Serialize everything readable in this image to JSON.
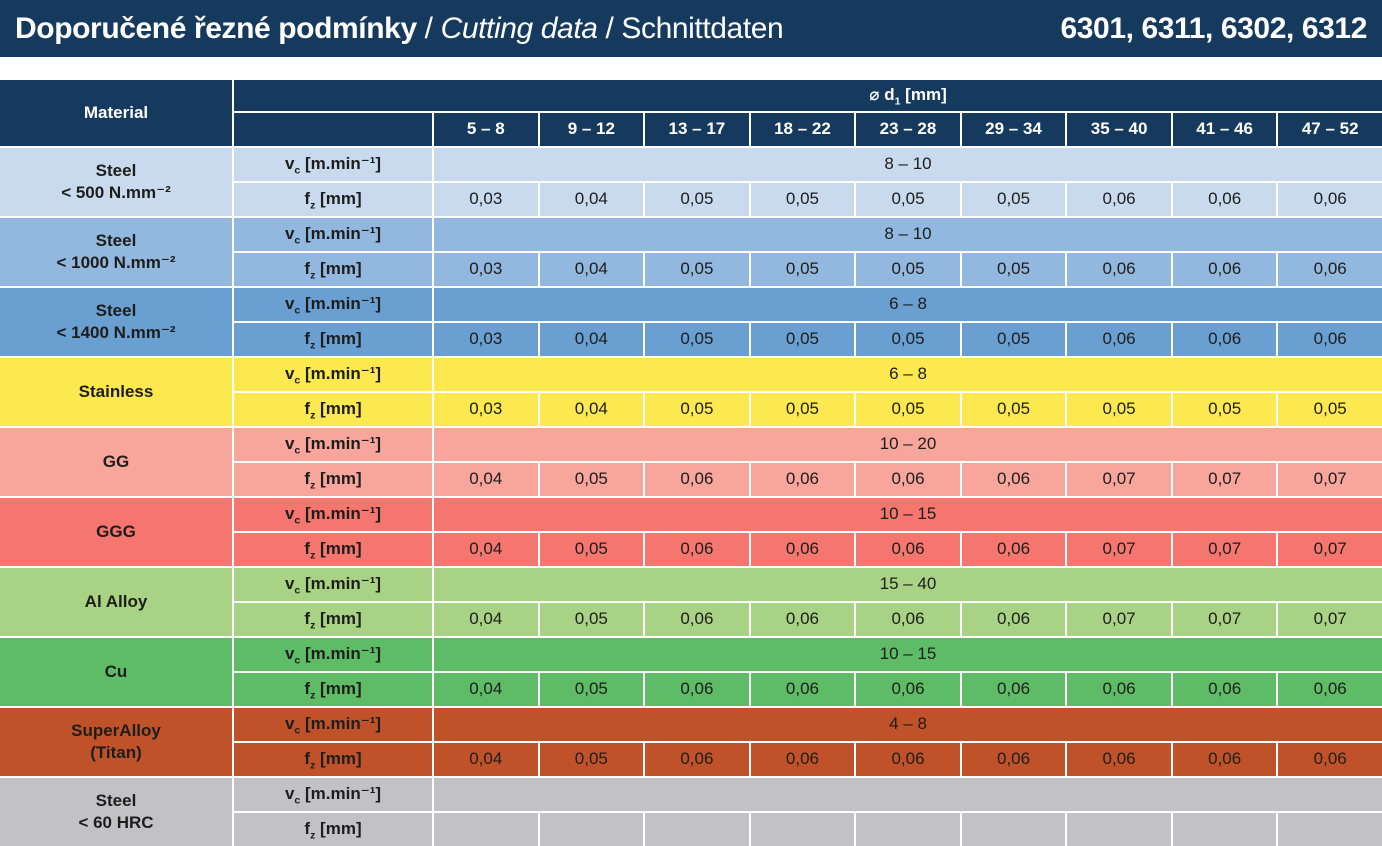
{
  "title": {
    "czech": "Doporučené řezné podmínky",
    "sep1": " / ",
    "english": "Cutting data",
    "sep2": " / ",
    "german": "Schnittdaten",
    "codes": "6301, 6311, 6302, 6312"
  },
  "colors": {
    "navy": "#163a5e",
    "grid_line": "#ffffff",
    "page_background": "#ffffff",
    "header_text": "#ffffff",
    "data_text": "#1d1d1b"
  },
  "table": {
    "material_header": "Material",
    "d1_header": {
      "pre": "⌀ d",
      "sub": "1",
      "post": " [mm]"
    },
    "diameter_ranges": [
      "5 – 8",
      "9 – 12",
      "13 – 17",
      "18 – 22",
      "23 – 28",
      "29 – 34",
      "35 – 40",
      "41 – 46",
      "47 – 52"
    ],
    "row_labels": {
      "vc": {
        "pre": "v",
        "sub": "c",
        "post": " [m.min⁻¹]"
      },
      "fz": {
        "pre": "f",
        "sub": "z",
        "post": " [mm]"
      }
    },
    "groups": [
      {
        "material_lines": [
          "Steel",
          "< 500 N.mm⁻²"
        ],
        "color": "#c9daee",
        "vc": "8 – 10",
        "fz": [
          "0,03",
          "0,04",
          "0,05",
          "0,05",
          "0,05",
          "0,05",
          "0,06",
          "0,06",
          "0,06"
        ]
      },
      {
        "material_lines": [
          "Steel",
          "< 1000 N.mm⁻²"
        ],
        "color": "#92b8df",
        "vc": "8 – 10",
        "fz": [
          "0,03",
          "0,04",
          "0,05",
          "0,05",
          "0,05",
          "0,05",
          "0,06",
          "0,06",
          "0,06"
        ]
      },
      {
        "material_lines": [
          "Steel",
          "< 1400 N.mm⁻²"
        ],
        "color": "#699fd1",
        "vc": "6 – 8",
        "fz": [
          "0,03",
          "0,04",
          "0,05",
          "0,05",
          "0,05",
          "0,05",
          "0,06",
          "0,06",
          "0,06"
        ]
      },
      {
        "material_lines": [
          "Stainless"
        ],
        "color": "#fbe94f",
        "vc": "6 – 8",
        "fz": [
          "0,03",
          "0,04",
          "0,05",
          "0,05",
          "0,05",
          "0,05",
          "0,05",
          "0,05",
          "0,05"
        ]
      },
      {
        "material_lines": [
          "GG"
        ],
        "color": "#f8a59c",
        "vc": "10 – 20",
        "fz": [
          "0,04",
          "0,05",
          "0,06",
          "0,06",
          "0,06",
          "0,06",
          "0,07",
          "0,07",
          "0,07"
        ]
      },
      {
        "material_lines": [
          "GGG"
        ],
        "color": "#f4766e",
        "vc": "10 – 15",
        "fz": [
          "0,04",
          "0,05",
          "0,06",
          "0,06",
          "0,06",
          "0,06",
          "0,07",
          "0,07",
          "0,07"
        ]
      },
      {
        "material_lines": [
          "Al Alloy"
        ],
        "color": "#a8d284",
        "vc": "15 – 40",
        "fz": [
          "0,04",
          "0,05",
          "0,06",
          "0,06",
          "0,06",
          "0,06",
          "0,07",
          "0,07",
          "0,07"
        ]
      },
      {
        "material_lines": [
          "Cu"
        ],
        "color": "#5fbc66",
        "vc": "10 – 15",
        "fz": [
          "0,04",
          "0,05",
          "0,06",
          "0,06",
          "0,06",
          "0,06",
          "0,06",
          "0,06",
          "0,06"
        ]
      },
      {
        "material_lines": [
          "SuperAlloy",
          "(Titan)"
        ],
        "color": "#c0522a",
        "vc": "4 – 8",
        "fz": [
          "0,04",
          "0,05",
          "0,06",
          "0,06",
          "0,06",
          "0,06",
          "0,06",
          "0,06",
          "0,06"
        ]
      },
      {
        "material_lines": [
          "Steel",
          "< 60 HRC"
        ],
        "color": "#c2c2c6",
        "vc": "",
        "fz": [
          "",
          "",
          "",
          "",
          "",
          "",
          "",
          "",
          ""
        ]
      }
    ]
  }
}
